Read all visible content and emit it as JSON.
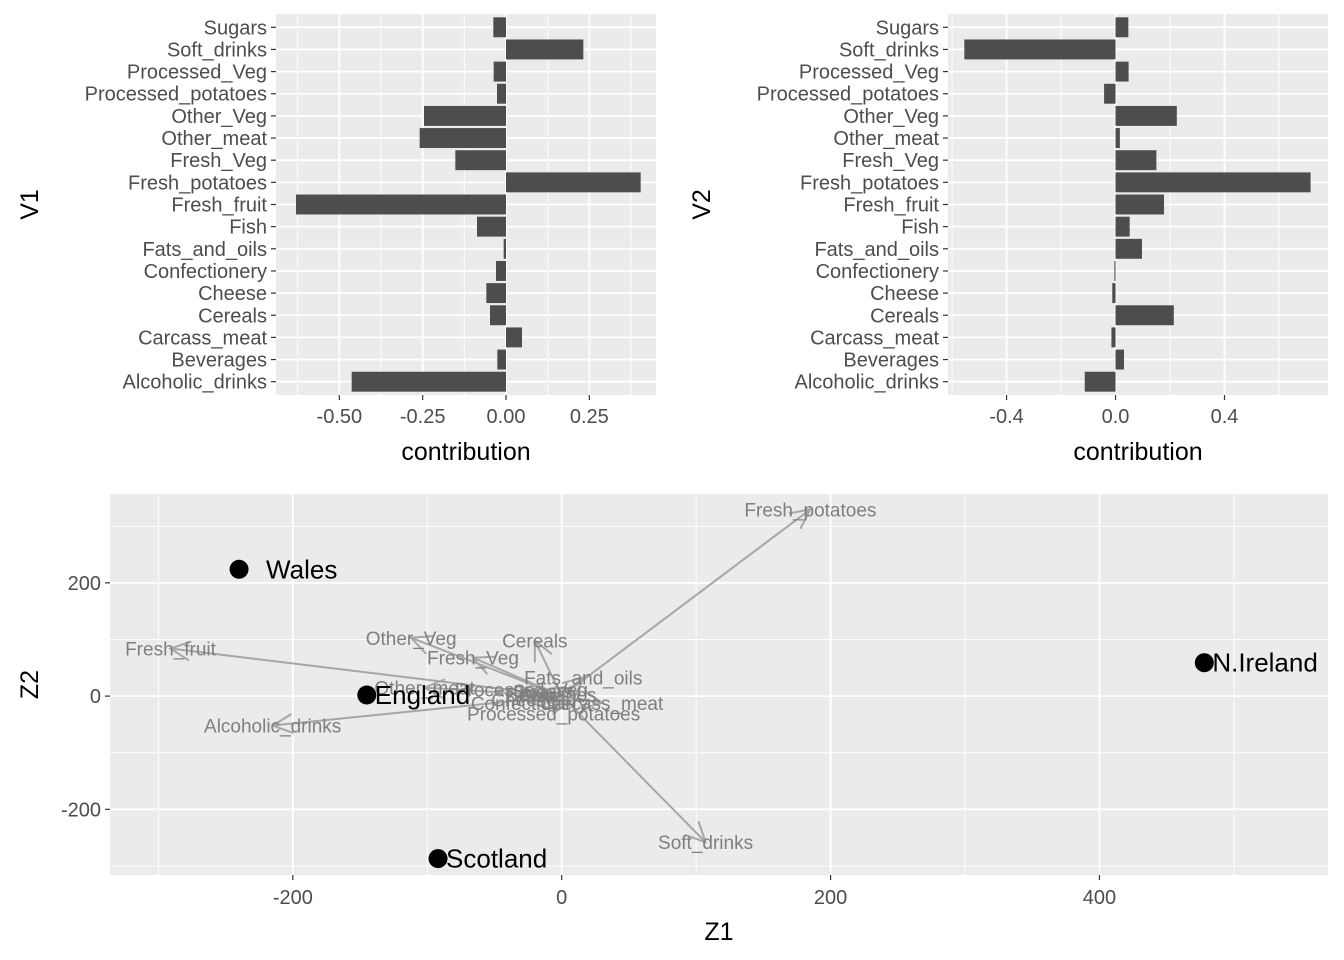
{
  "chart_data": [
    {
      "type": "bar",
      "orientation": "horizontal",
      "ylabel": "V1",
      "xlabel": "contribution",
      "categories": [
        "Alcoholic_drinks",
        "Beverages",
        "Carcass_meat",
        "Cereals",
        "Cheese",
        "Confectionery",
        "Fats_and_oils",
        "Fish",
        "Fresh_fruit",
        "Fresh_potatoes",
        "Fresh_Veg",
        "Other_meat",
        "Other_Veg",
        "Processed_potatoes",
        "Processed_Veg",
        "Soft_drinks",
        "Sugars"
      ],
      "values": [
        -0.463,
        -0.026,
        0.048,
        -0.048,
        -0.059,
        -0.03,
        -0.007,
        -0.087,
        -0.63,
        0.404,
        -0.152,
        -0.259,
        -0.246,
        -0.027,
        -0.037,
        0.232,
        -0.038
      ],
      "xlim": [
        -0.69,
        0.45
      ],
      "xticks": [
        -0.5,
        -0.25,
        0.0,
        0.25
      ],
      "xtick_labels": [
        "-0.50",
        "-0.25",
        "0.00",
        "0.25"
      ],
      "bar_color": "#4d4d4d",
      "grid": true
    },
    {
      "type": "bar",
      "orientation": "horizontal",
      "ylabel": "V2",
      "xlabel": "contribution",
      "categories": [
        "Alcoholic_drinks",
        "Beverages",
        "Carcass_meat",
        "Cereals",
        "Cheese",
        "Confectionery",
        "Fats_and_oils",
        "Fish",
        "Fresh_fruit",
        "Fresh_potatoes",
        "Fresh_Veg",
        "Other_meat",
        "Other_Veg",
        "Processed_potatoes",
        "Processed_Veg",
        "Soft_drinks",
        "Sugars"
      ],
      "values": [
        -0.113,
        0.031,
        -0.015,
        0.214,
        -0.012,
        -0.004,
        0.097,
        0.052,
        0.178,
        0.716,
        0.15,
        0.016,
        0.225,
        -0.042,
        0.048,
        -0.555,
        0.047
      ],
      "xlim": [
        -0.615,
        0.78
      ],
      "xticks": [
        -0.4,
        0.0,
        0.4
      ],
      "xtick_labels": [
        "-0.4",
        "0.0",
        "0.4"
      ],
      "bar_color": "#4d4d4d",
      "grid": true
    },
    {
      "type": "scatter",
      "subtype": "biplot",
      "xlabel": "Z1",
      "ylabel": "Z2",
      "xlim": [
        -336,
        570
      ],
      "ylim": [
        -316,
        357
      ],
      "xticks": [
        -200,
        0,
        200,
        400
      ],
      "yticks": [
        -200,
        0,
        200
      ],
      "points": [
        {
          "label": "Wales",
          "x": -240,
          "y": 224
        },
        {
          "label": "England",
          "x": -145,
          "y": 2
        },
        {
          "label": "Scotland",
          "x": -92,
          "y": -287
        },
        {
          "label": "N.Ireland",
          "x": 478,
          "y": 59
        }
      ],
      "arrows": [
        {
          "label": "Fresh_potatoes",
          "x": 185,
          "y": 330
        },
        {
          "label": "Fresh_fruit",
          "x": -291,
          "y": 84
        },
        {
          "label": "Alcoholic_drinks",
          "x": -215,
          "y": -52
        },
        {
          "label": "Soft_drinks",
          "x": 107,
          "y": -258
        },
        {
          "label": "Other_Veg",
          "x": -112,
          "y": 103
        },
        {
          "label": "Cereals",
          "x": -20,
          "y": 98
        },
        {
          "label": "Fresh_Veg",
          "x": -66,
          "y": 68
        },
        {
          "label": "Fats_and_oils",
          "x": 16,
          "y": 33
        },
        {
          "label": "Other_meat",
          "x": -102,
          "y": 15
        },
        {
          "label": "Processed_potatoes",
          "x": -6,
          "y": -31
        },
        {
          "label": "Carcass_meat",
          "x": 30,
          "y": -12
        },
        {
          "label": "Processed_Veg",
          "x": -30,
          "y": 12
        },
        {
          "label": "Sugars",
          "x": -14,
          "y": 9
        },
        {
          "label": "Fish",
          "x": -18,
          "y": 1
        },
        {
          "label": "Cheese",
          "x": -28,
          "y": -6
        },
        {
          "label": "Confectionery",
          "x": -24,
          "y": -12
        },
        {
          "label": "Beverages",
          "x": -8,
          "y": 3
        }
      ],
      "arrow_color": "#a6a6a6",
      "arrow_label_color": "#7f7f7f",
      "point_color": "#000000",
      "grid": true
    }
  ]
}
